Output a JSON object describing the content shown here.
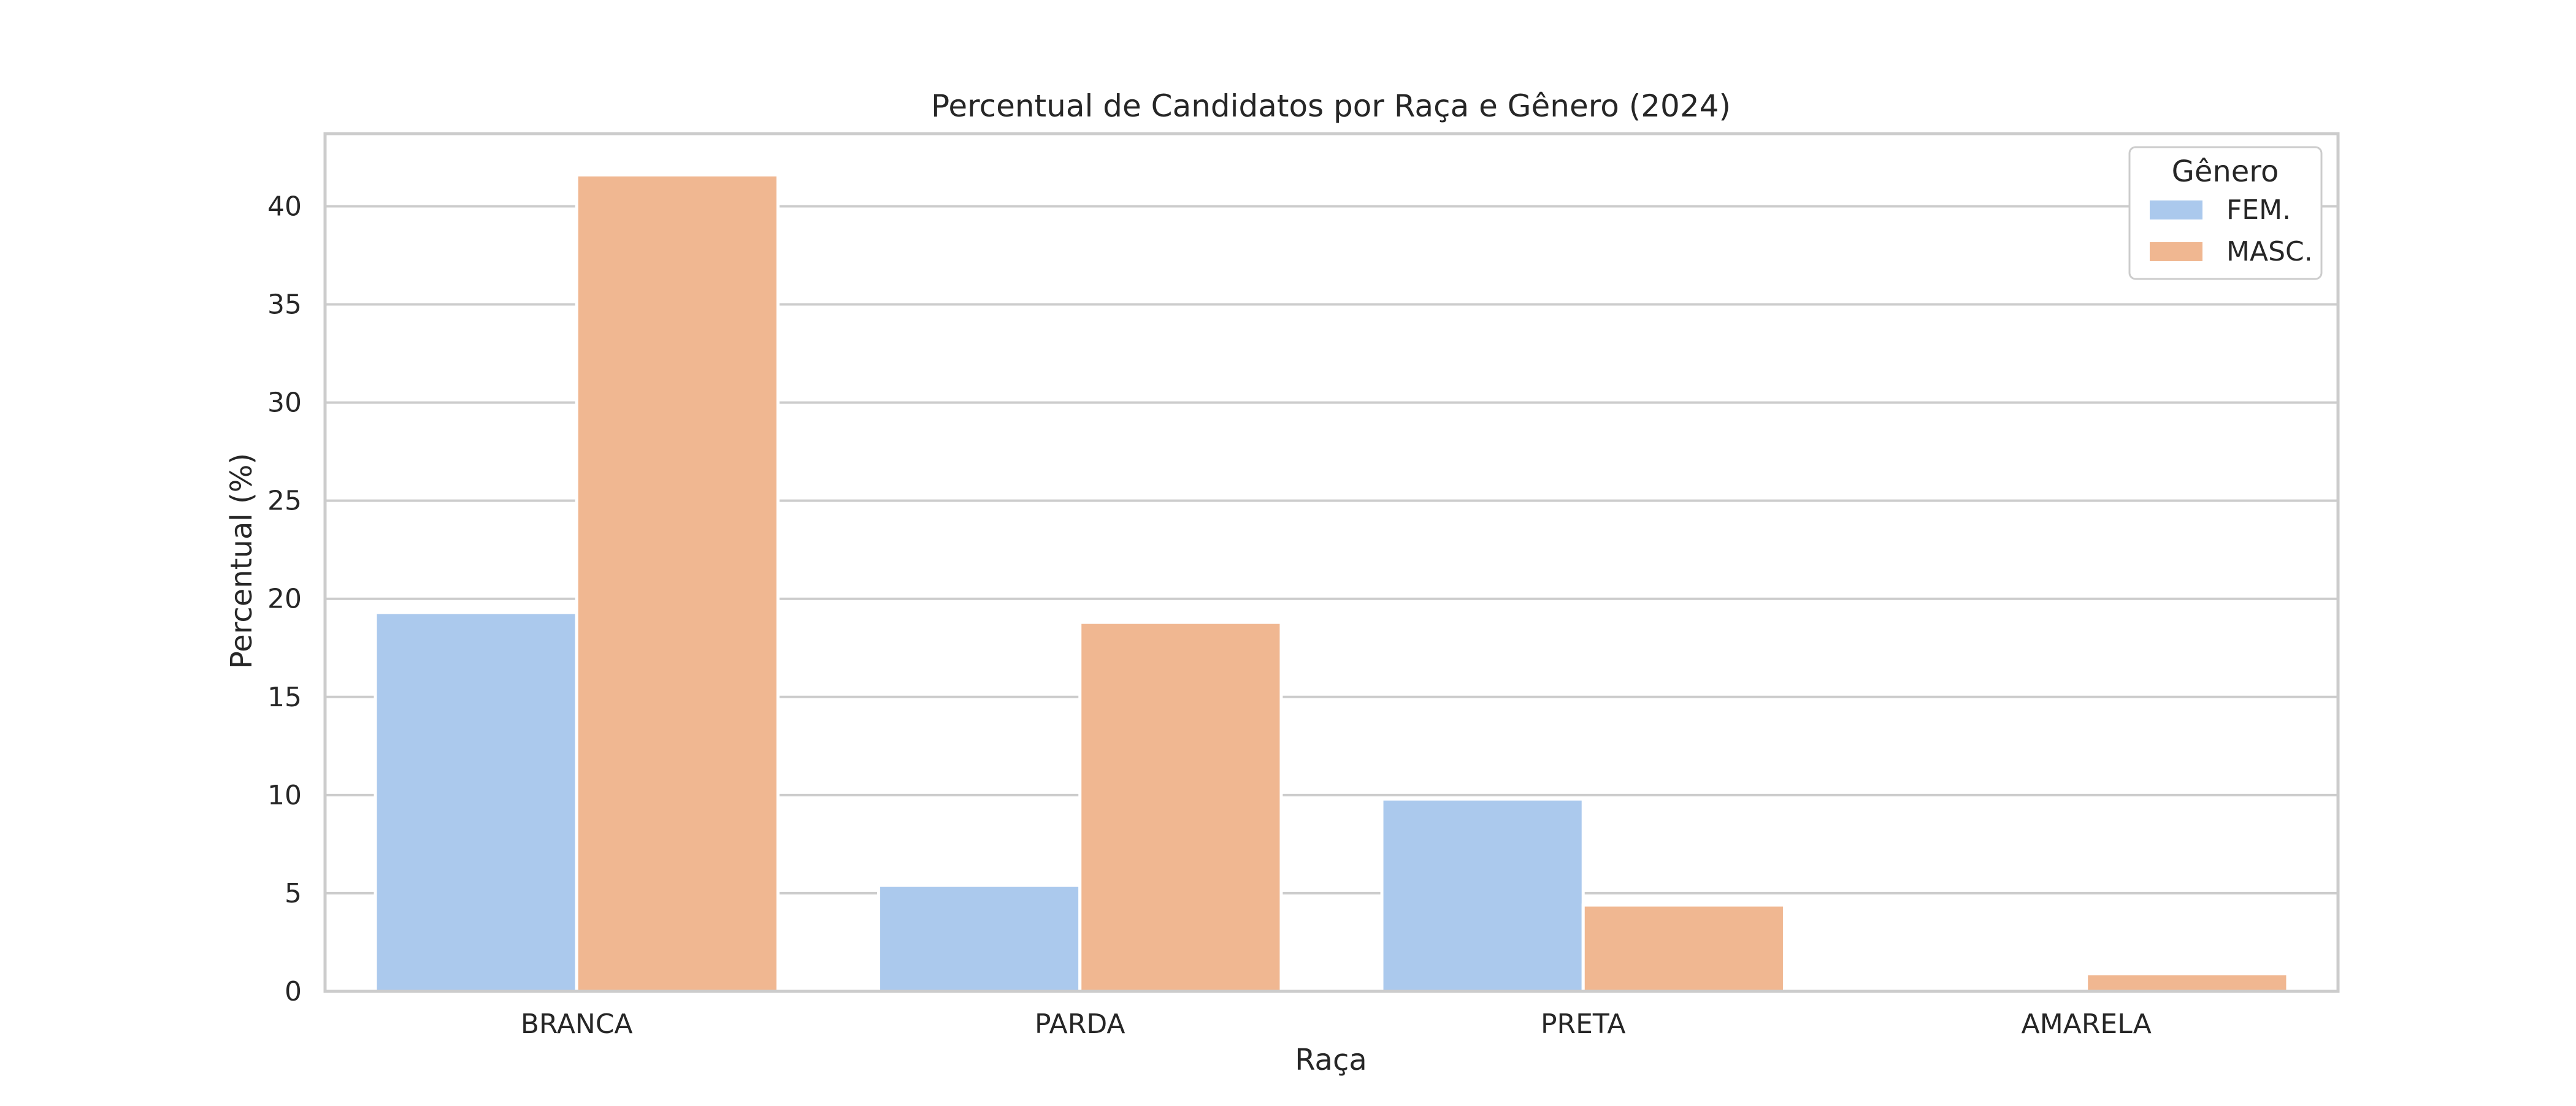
{
  "chart_data": {
    "type": "bar",
    "title": "Percentual de Candidatos por Raça e Gênero (2024)",
    "xlabel": "Raça",
    "ylabel": "Percentual (%)",
    "categories": [
      "BRANCA",
      "PARDA",
      "PRETA",
      "AMARELA"
    ],
    "series": [
      {
        "name": "FEM.",
        "values": [
          19.3,
          5.4,
          9.8,
          0.0
        ]
      },
      {
        "name": "MASC.",
        "values": [
          41.6,
          18.8,
          4.4,
          0.9
        ]
      }
    ],
    "ylim": [
      0,
      43.7
    ],
    "yticks": [
      0,
      5,
      10,
      15,
      20,
      25,
      30,
      35,
      40
    ],
    "grid": true,
    "legend": {
      "title": "Gênero",
      "position": "top-right"
    },
    "colors": {
      "FEM.": "#abc9ed",
      "MASC.": "#f0b791"
    }
  }
}
